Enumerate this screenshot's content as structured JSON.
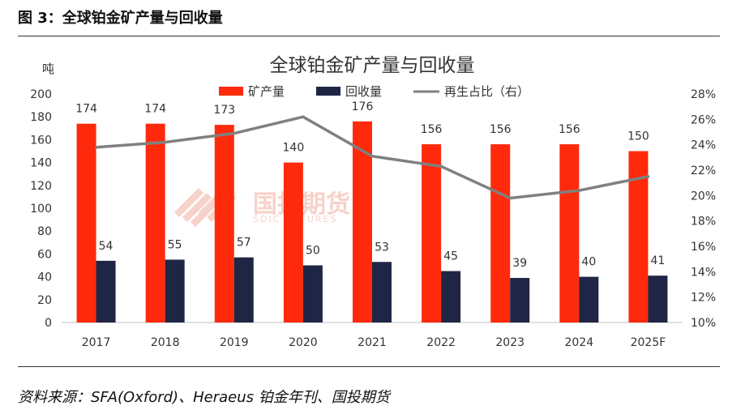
{
  "figure_caption": "图 3：全球铂金矿产量与回收量",
  "source_note": "资料来源：SFA(Oxford)、Heraeus 铂金年刊、国投期货",
  "watermark": {
    "cn": "国投期货",
    "en": "SDIC FUTURES"
  },
  "colors": {
    "production": "#ff2a0c",
    "recycling": "#1f2545",
    "ratio": "#808080",
    "watermark": "#f3b5a8"
  },
  "chart_data": {
    "type": "bar",
    "title": "全球铂金矿产量与回收量",
    "ylabel": "吨",
    "ylim": [
      0,
      200
    ],
    "yticks": [
      "0",
      "20",
      "40",
      "60",
      "80",
      "100",
      "120",
      "140",
      "160",
      "180",
      "200"
    ],
    "y2lim": [
      10,
      28
    ],
    "y2ticks": [
      "10%",
      "12%",
      "14%",
      "16%",
      "18%",
      "20%",
      "22%",
      "24%",
      "26%",
      "28%"
    ],
    "categories": [
      "2017",
      "2018",
      "2019",
      "2020",
      "2021",
      "2022",
      "2023",
      "2024",
      "2025F"
    ],
    "series": [
      {
        "name": "矿产量",
        "type": "bar",
        "axis": "left",
        "values": [
          174,
          174,
          173,
          140,
          176,
          156,
          156,
          156,
          150
        ]
      },
      {
        "name": "回收量",
        "type": "bar",
        "axis": "left",
        "values": [
          54,
          55,
          57,
          50,
          53,
          45,
          39,
          40,
          41
        ]
      },
      {
        "name": "再生占比（右）",
        "type": "line",
        "axis": "right",
        "values": [
          23.8,
          24.2,
          24.9,
          26.2,
          23.1,
          22.3,
          19.8,
          20.4,
          21.5
        ]
      }
    ],
    "legend_position": "top-center",
    "grid": false
  }
}
